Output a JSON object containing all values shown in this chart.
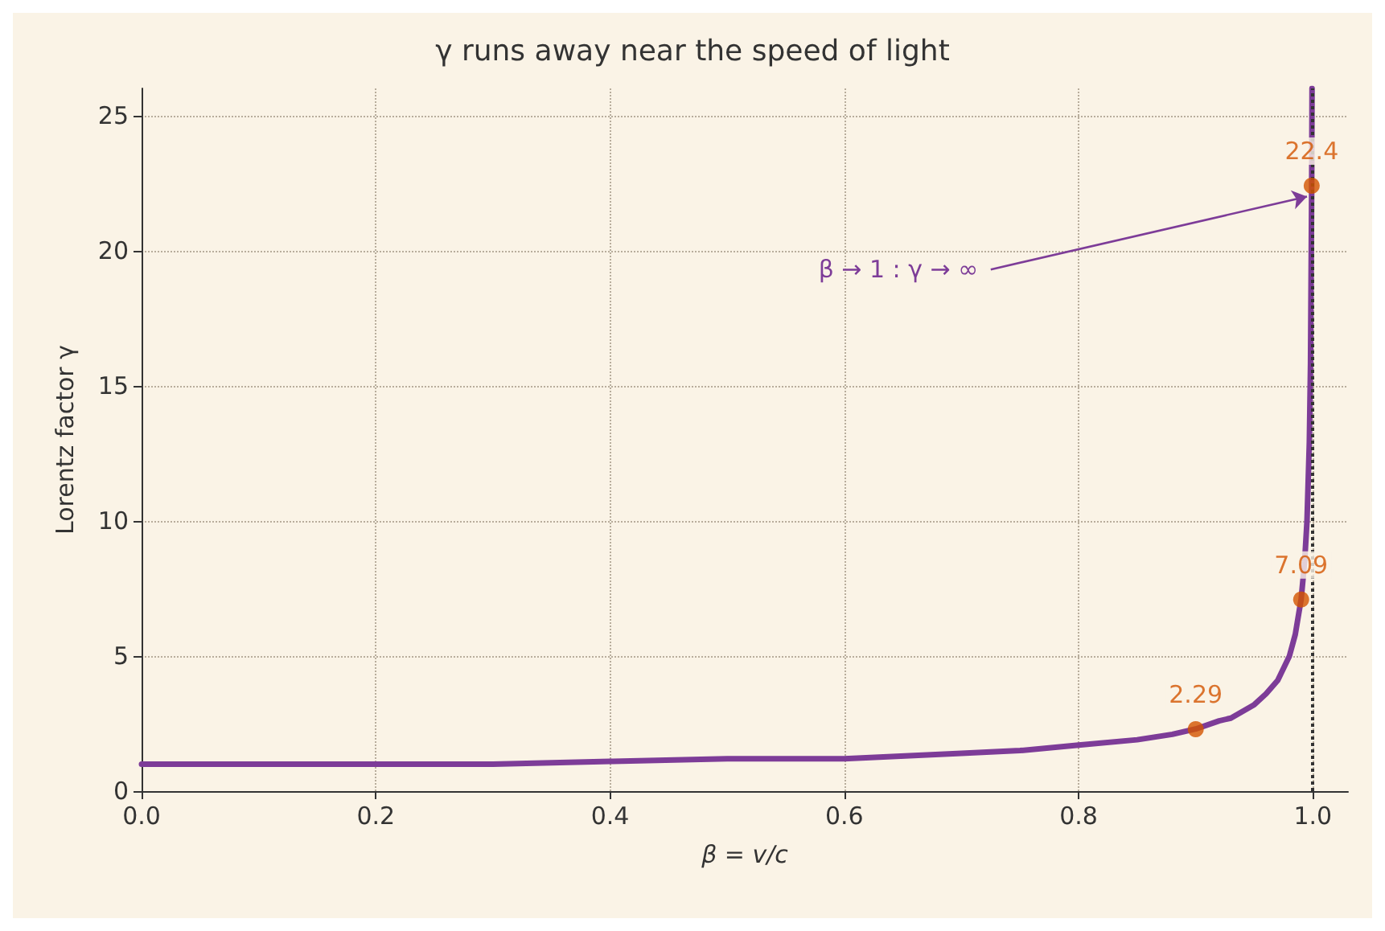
{
  "chart_data": {
    "type": "line",
    "title": "γ runs away near the speed of light",
    "xlabel": "β = v/c",
    "ylabel": "Lorentz factor γ",
    "xlim": [
      0,
      1.03
    ],
    "xticks": [
      {
        "value": 0,
        "label": "0.0"
      },
      0.2,
      0.4,
      0.6,
      0.8,
      {
        "value": 1,
        "label": "1.0"
      }
    ],
    "ylim": [
      0,
      26
    ],
    "yticks": [
      0,
      5,
      10,
      15,
      20,
      25
    ],
    "grid": true,
    "marker": "none",
    "line_style": "solid",
    "series": [
      {
        "color": "#7d3c98",
        "x": [
          0,
          0.1,
          0.2,
          0.3,
          0.4,
          0.5,
          0.6,
          0.7,
          0.75,
          0.8,
          0.85,
          0.88,
          0.9,
          0.92,
          0.93,
          0.95,
          0.96,
          0.97,
          0.98,
          0.985,
          0.99,
          0.993,
          0.995,
          0.997,
          0.998,
          0.999,
          0.9993
        ],
        "values": [
          1.0,
          1.0,
          1.0,
          1.0,
          1.1,
          1.2,
          1.2,
          1.4,
          1.5,
          1.7,
          1.9,
          2.1,
          2.3,
          2.6,
          2.7,
          3.2,
          3.6,
          4.1,
          5.0,
          5.8,
          7.1,
          8.5,
          10,
          12.9,
          15.8,
          22.4,
          26
        ]
      },
      {
        "type": "scatter",
        "color": "#d35400",
        "marker": "circle",
        "x": [
          0.9,
          0.99,
          0.999
        ],
        "values": [
          2.29,
          7.09,
          22.4
        ],
        "value_labels": [
          "2.29",
          "7.09",
          "22.4"
        ]
      }
    ],
    "ref_lines": [
      {
        "axis": "x",
        "value": 1.0,
        "color": "#333333",
        "line_style": "dotted"
      }
    ],
    "annotations": [
      {
        "text": "β → 1 : γ → ∞",
        "x": 0.995,
        "y": 22
      }
    ]
  }
}
